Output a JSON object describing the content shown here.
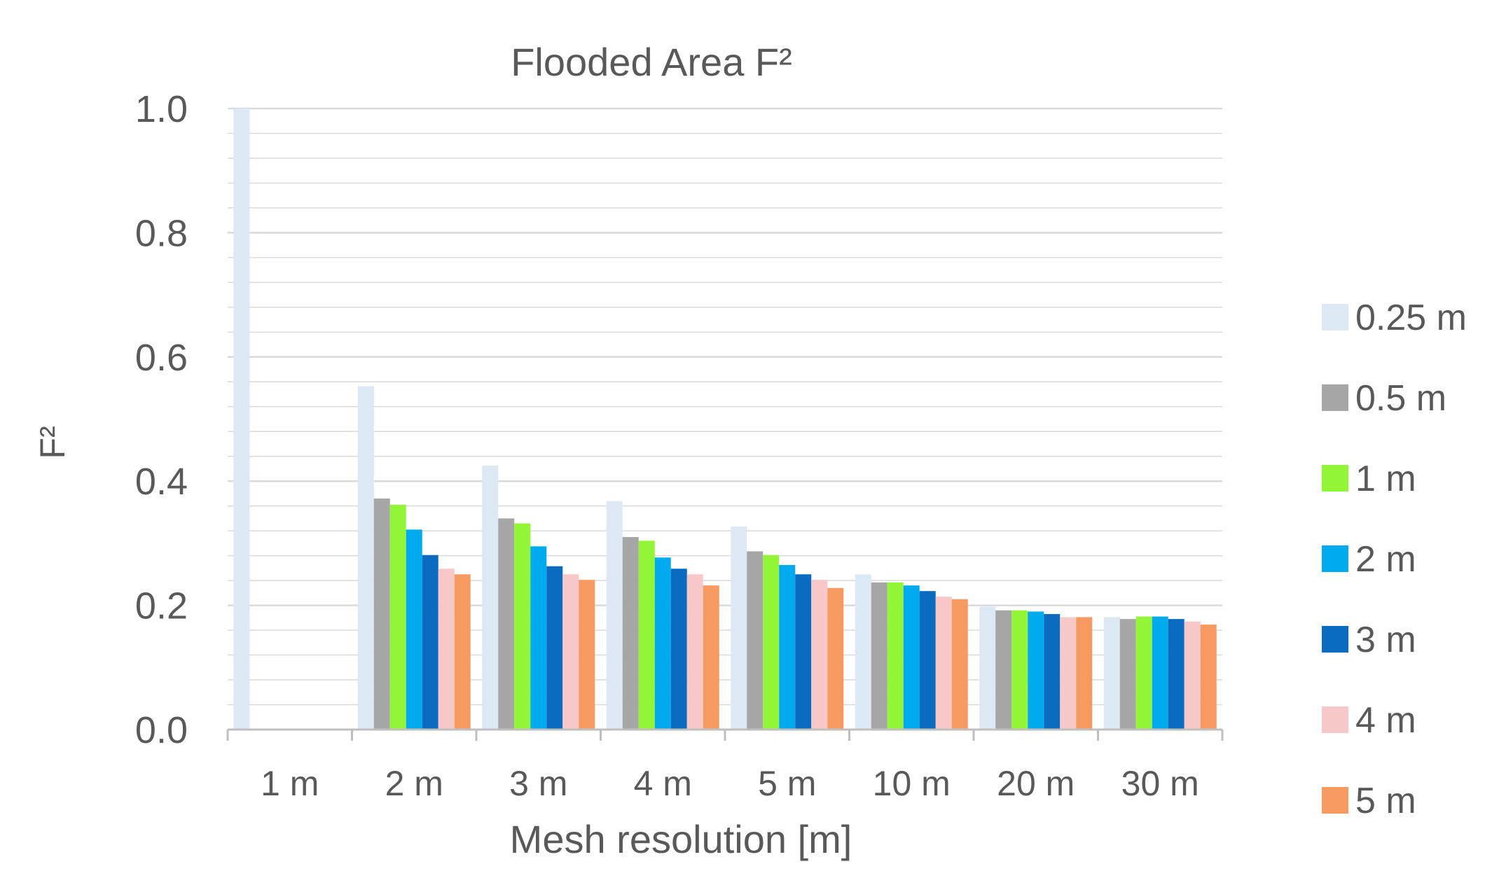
{
  "chart_data": {
    "type": "bar",
    "title": "Flooded Area F²",
    "xlabel": "Mesh resolution [m]",
    "ylabel": "F²",
    "ylim": [
      0,
      1
    ],
    "yticks": [
      "0.0",
      "0.2",
      "0.4",
      "0.6",
      "0.8",
      "1.0"
    ],
    "grid": true,
    "legend_position": "right",
    "categories": [
      "1 m",
      "2 m",
      "3 m",
      "4 m",
      "5 m",
      "10 m",
      "20 m",
      "30 m"
    ],
    "series": [
      {
        "name": "0.25 m",
        "color": "#dde8f5",
        "values": [
          1.0,
          0.553,
          0.425,
          0.368,
          0.327,
          0.25,
          0.198,
          0.181
        ]
      },
      {
        "name": "0.5 m",
        "color": "#a6a6a6",
        "values": [
          0,
          0.372,
          0.34,
          0.31,
          0.287,
          0.237,
          0.192,
          0.178
        ]
      },
      {
        "name": "1 m",
        "color": "#92f536",
        "values": [
          0,
          0.362,
          0.332,
          0.304,
          0.281,
          0.237,
          0.192,
          0.182
        ]
      },
      {
        "name": "2 m",
        "color": "#00aaee",
        "values": [
          0,
          0.322,
          0.295,
          0.277,
          0.265,
          0.232,
          0.19,
          0.182
        ]
      },
      {
        "name": "3 m",
        "color": "#0a6bc0",
        "values": [
          0,
          0.281,
          0.263,
          0.259,
          0.25,
          0.223,
          0.186,
          0.178
        ]
      },
      {
        "name": "4 m",
        "color": "#f8c8c8",
        "values": [
          0,
          0.259,
          0.25,
          0.25,
          0.241,
          0.214,
          0.181,
          0.174
        ]
      },
      {
        "name": "5 m",
        "color": "#f79a62",
        "values": [
          0,
          0.25,
          0.241,
          0.232,
          0.228,
          0.21,
          0.181,
          0.169
        ]
      }
    ],
    "colors": {
      "gridline": "#d9d9d9",
      "axis": "#bfbfbf",
      "text": "#595959"
    }
  }
}
